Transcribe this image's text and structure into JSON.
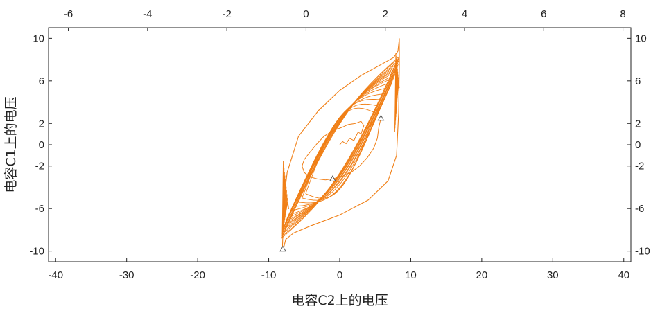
{
  "chart_data": {
    "type": "line",
    "title": "",
    "xlabel": "电容C2上的电压",
    "ylabel": "电容C1上的电压",
    "xlim": [
      -41,
      41
    ],
    "ylim": [
      -11,
      11
    ],
    "x_ticks": [
      -40,
      -30,
      -20,
      -10,
      0,
      10,
      20,
      30,
      40
    ],
    "y_ticks": [
      -10,
      -6,
      -2,
      0,
      2,
      6,
      10
    ],
    "top_xlim": [
      -6.5,
      8.2
    ],
    "top_x_ticks": [
      -6,
      -4,
      -2,
      0,
      2,
      4,
      6,
      8
    ],
    "grid": false,
    "legend": "none",
    "series_color": "#f07f16",
    "marker_symbol": "triangle",
    "markers": [
      {
        "x": -8,
        "y": -9.8
      },
      {
        "x": 5.8,
        "y": 2.5
      },
      {
        "x": -1,
        "y": -3.2
      }
    ],
    "inner_path": [
      [
        0,
        0
      ],
      [
        0.4,
        0.3
      ],
      [
        0.9,
        0.1
      ],
      [
        1.4,
        0.6
      ],
      [
        2.0,
        0.4
      ],
      [
        2.6,
        1.2
      ],
      [
        3.0,
        1.0
      ],
      [
        3.4,
        1.8
      ],
      [
        3.0,
        2.2
      ],
      [
        2.2,
        2.0
      ],
      [
        1.2,
        1.9
      ],
      [
        0.2,
        1.6
      ],
      [
        -1.0,
        1.3
      ],
      [
        -2.2,
        0.8
      ],
      [
        -3.2,
        0.1
      ],
      [
        -4.2,
        -0.7
      ],
      [
        -5.0,
        -1.4
      ],
      [
        -5.3,
        -2.0
      ],
      [
        -5.0,
        -2.6
      ],
      [
        -4.3,
        -3.0
      ],
      [
        -3.2,
        -3.2
      ],
      [
        -2.0,
        -3.3
      ],
      [
        -1.0,
        -3.2
      ],
      [
        0.2,
        -3.0
      ],
      [
        1.6,
        -2.6
      ],
      [
        2.8,
        -2.0
      ],
      [
        3.9,
        -1.2
      ],
      [
        4.8,
        -0.3
      ],
      [
        5.3,
        0.6
      ],
      [
        5.5,
        1.6
      ],
      [
        5.8,
        2.5
      ]
    ],
    "loops": [
      {
        "xmin": -4.8,
        "xmax": 5.0,
        "ymax": 3.0,
        "ymin": -4.6,
        "sk": 3.3
      },
      {
        "xmin": -5.3,
        "xmax": 5.6,
        "ymax": 3.6,
        "ymin": -5.0,
        "sk": 3.3
      },
      {
        "xmin": -5.8,
        "xmax": 6.1,
        "ymax": 4.2,
        "ymin": -5.4,
        "sk": 3.3
      },
      {
        "xmin": -6.3,
        "xmax": 6.6,
        "ymax": 4.8,
        "ymin": -5.8,
        "sk": 3.1
      },
      {
        "xmin": -6.8,
        "xmax": 7.0,
        "ymax": 5.4,
        "ymin": -6.2,
        "sk": 3.0
      },
      {
        "xmin": -7.1,
        "xmax": 7.4,
        "ymax": 5.9,
        "ymin": -6.6,
        "sk": 2.9
      },
      {
        "xmin": -7.4,
        "xmax": 7.6,
        "ymax": 6.3,
        "ymin": -6.9,
        "sk": 2.8
      },
      {
        "xmin": -7.6,
        "xmax": 7.8,
        "ymax": 6.6,
        "ymin": -7.2,
        "sk": 2.7
      },
      {
        "xmin": -7.7,
        "xmax": 7.9,
        "ymax": 6.9,
        "ymin": -7.4,
        "sk": 2.6
      },
      {
        "xmin": -7.8,
        "xmax": 8.0,
        "ymax": 7.1,
        "ymin": -7.6,
        "sk": 2.6
      },
      {
        "xmin": -7.9,
        "xmax": 8.1,
        "ymax": 7.3,
        "ymin": -7.8,
        "sk": 2.5
      },
      {
        "xmin": -8.0,
        "xmax": 8.2,
        "ymax": 7.5,
        "ymin": -8.0,
        "sk": 2.5
      },
      {
        "xmin": -8.0,
        "xmax": 8.2,
        "ymax": 7.7,
        "ymin": -8.2,
        "sk": 2.4
      },
      {
        "xmin": -8.1,
        "xmax": 8.3,
        "ymax": 7.9,
        "ymin": -8.4,
        "sk": 2.4
      },
      {
        "xmin": -8.1,
        "xmax": 8.3,
        "ymax": 8.1,
        "ymin": -8.6,
        "sk": 2.4
      },
      {
        "xmin": -8.2,
        "xmax": 8.4,
        "ymax": 8.3,
        "ymin": -8.8,
        "sk": 2.3
      }
    ],
    "outer_extreme": {
      "xmax": 8.4,
      "ymax": 10.0,
      "xmin": -8.0,
      "ymin": -10.0
    }
  }
}
